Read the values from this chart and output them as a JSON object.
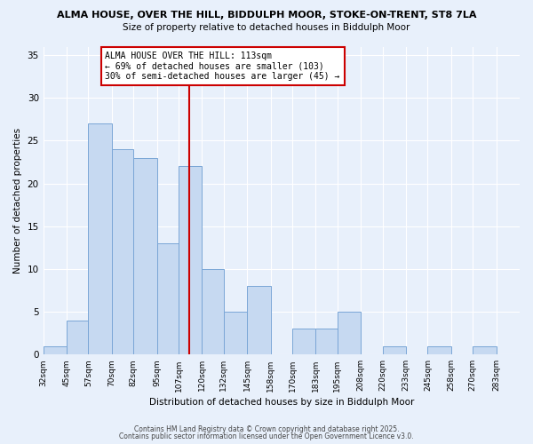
{
  "title_line1": "ALMA HOUSE, OVER THE HILL, BIDDULPH MOOR, STOKE-ON-TRENT, ST8 7LA",
  "title_line2": "Size of property relative to detached houses in Biddulph Moor",
  "xlabel": "Distribution of detached houses by size in Biddulph Moor",
  "ylabel": "Number of detached properties",
  "bin_labels": [
    "32sqm",
    "45sqm",
    "57sqm",
    "70sqm",
    "82sqm",
    "95sqm",
    "107sqm",
    "120sqm",
    "132sqm",
    "145sqm",
    "158sqm",
    "170sqm",
    "183sqm",
    "195sqm",
    "208sqm",
    "220sqm",
    "233sqm",
    "245sqm",
    "258sqm",
    "270sqm",
    "283sqm"
  ],
  "bin_edges": [
    32,
    45,
    57,
    70,
    82,
    95,
    107,
    120,
    132,
    145,
    158,
    170,
    183,
    195,
    208,
    220,
    233,
    245,
    258,
    270,
    283
  ],
  "counts": [
    1,
    4,
    27,
    24,
    23,
    13,
    22,
    10,
    5,
    8,
    0,
    3,
    3,
    5,
    0,
    1,
    0,
    1,
    0,
    1
  ],
  "bar_color": "#c6d9f1",
  "bar_edge_color": "#7aa6d6",
  "vline_x": 113,
  "vline_color": "#cc0000",
  "annotation_text_line1": "ALMA HOUSE OVER THE HILL: 113sqm",
  "annotation_text_line2": "← 69% of detached houses are smaller (103)",
  "annotation_text_line3": "30% of semi-detached houses are larger (45) →",
  "ylim": [
    0,
    36
  ],
  "yticks": [
    0,
    5,
    10,
    15,
    20,
    25,
    30,
    35
  ],
  "background_color": "#e8f0fb",
  "footer_line1": "Contains HM Land Registry data © Crown copyright and database right 2025.",
  "footer_line2": "Contains public sector information licensed under the Open Government Licence v3.0."
}
